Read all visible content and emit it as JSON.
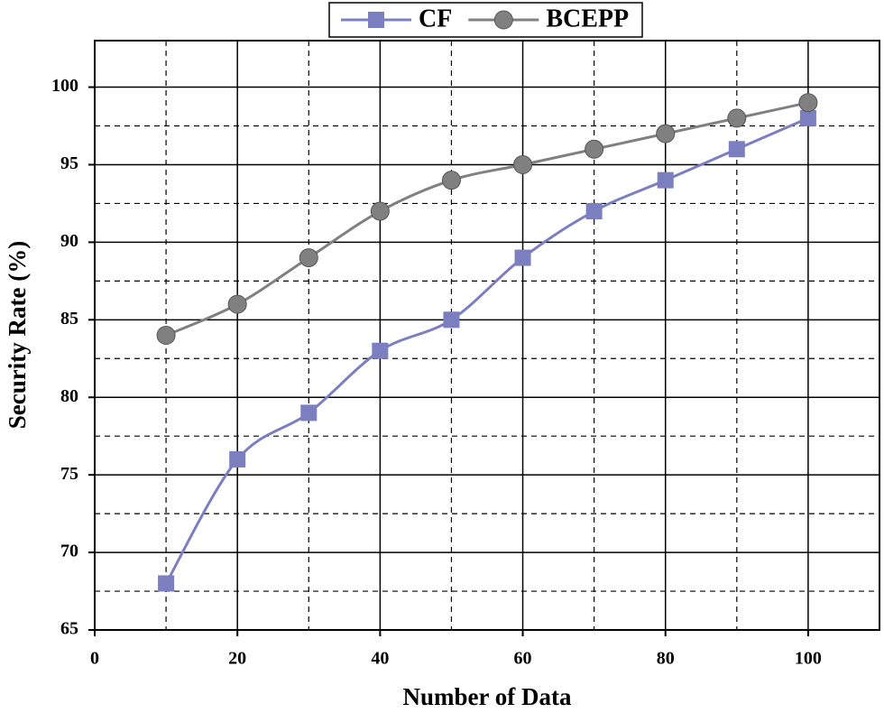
{
  "chart_data": {
    "type": "line",
    "x": [
      10,
      20,
      30,
      40,
      50,
      60,
      70,
      80,
      90,
      100
    ],
    "series": [
      {
        "name": "CF",
        "color": "#7b7fc0",
        "marker": "square",
        "values": [
          68,
          76,
          79,
          83,
          85,
          89,
          92,
          94,
          96,
          98
        ]
      },
      {
        "name": "BCEPP",
        "color": "#808080",
        "marker": "circle",
        "values": [
          84,
          86,
          89,
          92,
          94,
          95,
          96,
          97,
          98,
          99
        ]
      }
    ],
    "xlabel": "Number of Data",
    "ylabel": "Security Rate (%)",
    "xlim": [
      0,
      110
    ],
    "ylim": [
      65,
      103
    ],
    "xticks": [
      0,
      20,
      40,
      60,
      80,
      100
    ],
    "yticks": [
      65,
      70,
      75,
      80,
      85,
      90,
      95,
      100
    ],
    "xminor": [
      10,
      30,
      50,
      70,
      90
    ],
    "yminor": [
      67.5,
      72.5,
      77.5,
      82.5,
      87.5,
      92.5,
      97.5
    ],
    "grid": true,
    "legend": "top"
  }
}
